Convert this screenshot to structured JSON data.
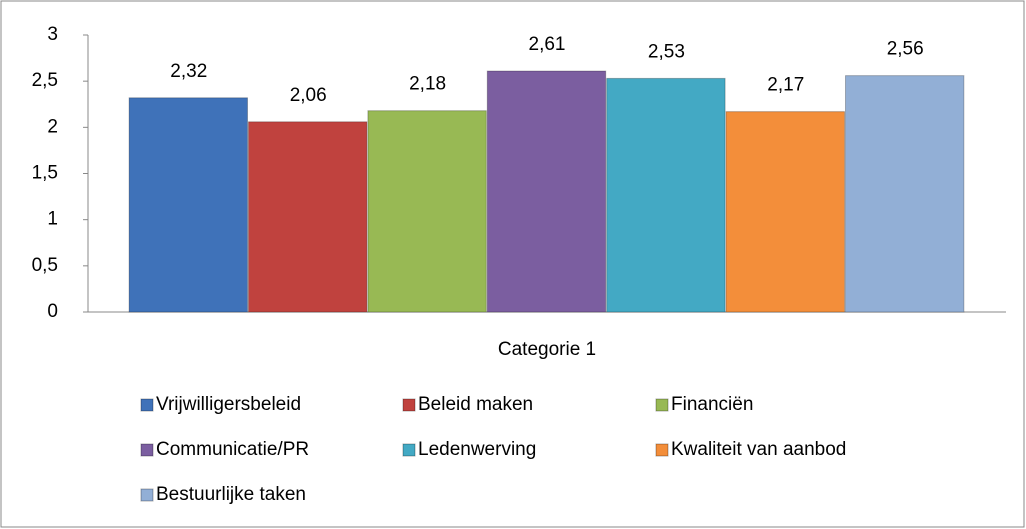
{
  "chart_data": {
    "type": "bar",
    "categories": [
      "Categorie 1"
    ],
    "series": [
      {
        "name": "Vrijwilligersbeleid",
        "color": "#3f72b9",
        "values": [
          2.32
        ],
        "value_labels": [
          "2,32"
        ]
      },
      {
        "name": "Beleid maken",
        "color": "#c0423e",
        "values": [
          2.06
        ],
        "value_labels": [
          "2,06"
        ]
      },
      {
        "name": "Financiën",
        "color": "#98b954",
        "values": [
          2.18
        ],
        "value_labels": [
          "2,18"
        ]
      },
      {
        "name": "Communicatie/PR",
        "color": "#7b5ea0",
        "values": [
          2.61
        ],
        "value_labels": [
          "2,61"
        ]
      },
      {
        "name": "Ledenwerving",
        "color": "#43a9c4",
        "values": [
          2.53
        ],
        "value_labels": [
          "2,53"
        ]
      },
      {
        "name": "Kwaliteit van aanbod",
        "color": "#f38e3a",
        "values": [
          2.17
        ],
        "value_labels": [
          "2,17"
        ]
      },
      {
        "name": "Bestuurlijke taken",
        "color": "#92afd6",
        "values": [
          2.56
        ],
        "value_labels": [
          "2,56"
        ]
      }
    ],
    "ylim": [
      0,
      3
    ],
    "yticks": [
      0,
      {
        "value": 0.5,
        "label": "0,5"
      },
      1,
      {
        "value": 1.5,
        "label": "1,5"
      },
      2,
      {
        "value": 2.5,
        "label": "2,5"
      },
      3
    ],
    "grid": false
  }
}
